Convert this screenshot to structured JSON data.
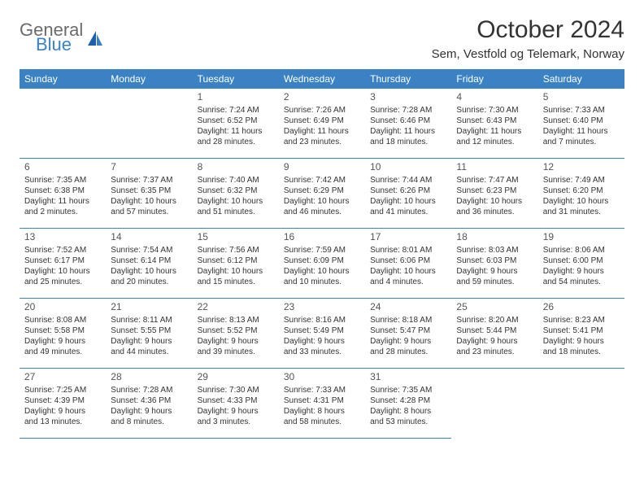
{
  "logo": {
    "top": "General",
    "bottom": "Blue"
  },
  "title": "October 2024",
  "location": "Sem, Vestfold og Telemark, Norway",
  "colors": {
    "header_bg": "#3a82c4",
    "header_text": "#ffffff",
    "rule": "#3a82c4",
    "body_text": "#333333",
    "logo_grey": "#6b6b6b",
    "logo_blue": "#3a82c4",
    "background": "#ffffff"
  },
  "day_headers": [
    "Sunday",
    "Monday",
    "Tuesday",
    "Wednesday",
    "Thursday",
    "Friday",
    "Saturday"
  ],
  "weeks": [
    [
      null,
      null,
      {
        "n": "1",
        "sr": "Sunrise: 7:24 AM",
        "ss": "Sunset: 6:52 PM",
        "d1": "Daylight: 11 hours",
        "d2": "and 28 minutes."
      },
      {
        "n": "2",
        "sr": "Sunrise: 7:26 AM",
        "ss": "Sunset: 6:49 PM",
        "d1": "Daylight: 11 hours",
        "d2": "and 23 minutes."
      },
      {
        "n": "3",
        "sr": "Sunrise: 7:28 AM",
        "ss": "Sunset: 6:46 PM",
        "d1": "Daylight: 11 hours",
        "d2": "and 18 minutes."
      },
      {
        "n": "4",
        "sr": "Sunrise: 7:30 AM",
        "ss": "Sunset: 6:43 PM",
        "d1": "Daylight: 11 hours",
        "d2": "and 12 minutes."
      },
      {
        "n": "5",
        "sr": "Sunrise: 7:33 AM",
        "ss": "Sunset: 6:40 PM",
        "d1": "Daylight: 11 hours",
        "d2": "and 7 minutes."
      }
    ],
    [
      {
        "n": "6",
        "sr": "Sunrise: 7:35 AM",
        "ss": "Sunset: 6:38 PM",
        "d1": "Daylight: 11 hours",
        "d2": "and 2 minutes."
      },
      {
        "n": "7",
        "sr": "Sunrise: 7:37 AM",
        "ss": "Sunset: 6:35 PM",
        "d1": "Daylight: 10 hours",
        "d2": "and 57 minutes."
      },
      {
        "n": "8",
        "sr": "Sunrise: 7:40 AM",
        "ss": "Sunset: 6:32 PM",
        "d1": "Daylight: 10 hours",
        "d2": "and 51 minutes."
      },
      {
        "n": "9",
        "sr": "Sunrise: 7:42 AM",
        "ss": "Sunset: 6:29 PM",
        "d1": "Daylight: 10 hours",
        "d2": "and 46 minutes."
      },
      {
        "n": "10",
        "sr": "Sunrise: 7:44 AM",
        "ss": "Sunset: 6:26 PM",
        "d1": "Daylight: 10 hours",
        "d2": "and 41 minutes."
      },
      {
        "n": "11",
        "sr": "Sunrise: 7:47 AM",
        "ss": "Sunset: 6:23 PM",
        "d1": "Daylight: 10 hours",
        "d2": "and 36 minutes."
      },
      {
        "n": "12",
        "sr": "Sunrise: 7:49 AM",
        "ss": "Sunset: 6:20 PM",
        "d1": "Daylight: 10 hours",
        "d2": "and 31 minutes."
      }
    ],
    [
      {
        "n": "13",
        "sr": "Sunrise: 7:52 AM",
        "ss": "Sunset: 6:17 PM",
        "d1": "Daylight: 10 hours",
        "d2": "and 25 minutes."
      },
      {
        "n": "14",
        "sr": "Sunrise: 7:54 AM",
        "ss": "Sunset: 6:14 PM",
        "d1": "Daylight: 10 hours",
        "d2": "and 20 minutes."
      },
      {
        "n": "15",
        "sr": "Sunrise: 7:56 AM",
        "ss": "Sunset: 6:12 PM",
        "d1": "Daylight: 10 hours",
        "d2": "and 15 minutes."
      },
      {
        "n": "16",
        "sr": "Sunrise: 7:59 AM",
        "ss": "Sunset: 6:09 PM",
        "d1": "Daylight: 10 hours",
        "d2": "and 10 minutes."
      },
      {
        "n": "17",
        "sr": "Sunrise: 8:01 AM",
        "ss": "Sunset: 6:06 PM",
        "d1": "Daylight: 10 hours",
        "d2": "and 4 minutes."
      },
      {
        "n": "18",
        "sr": "Sunrise: 8:03 AM",
        "ss": "Sunset: 6:03 PM",
        "d1": "Daylight: 9 hours",
        "d2": "and 59 minutes."
      },
      {
        "n": "19",
        "sr": "Sunrise: 8:06 AM",
        "ss": "Sunset: 6:00 PM",
        "d1": "Daylight: 9 hours",
        "d2": "and 54 minutes."
      }
    ],
    [
      {
        "n": "20",
        "sr": "Sunrise: 8:08 AM",
        "ss": "Sunset: 5:58 PM",
        "d1": "Daylight: 9 hours",
        "d2": "and 49 minutes."
      },
      {
        "n": "21",
        "sr": "Sunrise: 8:11 AM",
        "ss": "Sunset: 5:55 PM",
        "d1": "Daylight: 9 hours",
        "d2": "and 44 minutes."
      },
      {
        "n": "22",
        "sr": "Sunrise: 8:13 AM",
        "ss": "Sunset: 5:52 PM",
        "d1": "Daylight: 9 hours",
        "d2": "and 39 minutes."
      },
      {
        "n": "23",
        "sr": "Sunrise: 8:16 AM",
        "ss": "Sunset: 5:49 PM",
        "d1": "Daylight: 9 hours",
        "d2": "and 33 minutes."
      },
      {
        "n": "24",
        "sr": "Sunrise: 8:18 AM",
        "ss": "Sunset: 5:47 PM",
        "d1": "Daylight: 9 hours",
        "d2": "and 28 minutes."
      },
      {
        "n": "25",
        "sr": "Sunrise: 8:20 AM",
        "ss": "Sunset: 5:44 PM",
        "d1": "Daylight: 9 hours",
        "d2": "and 23 minutes."
      },
      {
        "n": "26",
        "sr": "Sunrise: 8:23 AM",
        "ss": "Sunset: 5:41 PM",
        "d1": "Daylight: 9 hours",
        "d2": "and 18 minutes."
      }
    ],
    [
      {
        "n": "27",
        "sr": "Sunrise: 7:25 AM",
        "ss": "Sunset: 4:39 PM",
        "d1": "Daylight: 9 hours",
        "d2": "and 13 minutes."
      },
      {
        "n": "28",
        "sr": "Sunrise: 7:28 AM",
        "ss": "Sunset: 4:36 PM",
        "d1": "Daylight: 9 hours",
        "d2": "and 8 minutes."
      },
      {
        "n": "29",
        "sr": "Sunrise: 7:30 AM",
        "ss": "Sunset: 4:33 PM",
        "d1": "Daylight: 9 hours",
        "d2": "and 3 minutes."
      },
      {
        "n": "30",
        "sr": "Sunrise: 7:33 AM",
        "ss": "Sunset: 4:31 PM",
        "d1": "Daylight: 8 hours",
        "d2": "and 58 minutes."
      },
      {
        "n": "31",
        "sr": "Sunrise: 7:35 AM",
        "ss": "Sunset: 4:28 PM",
        "d1": "Daylight: 8 hours",
        "d2": "and 53 minutes."
      },
      null,
      null
    ]
  ]
}
